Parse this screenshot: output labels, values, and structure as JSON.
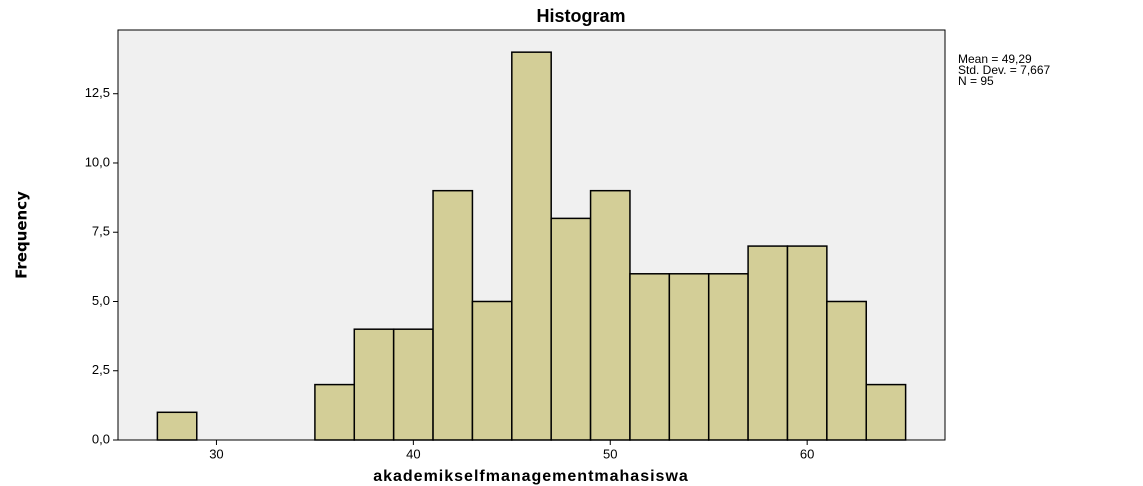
{
  "chart_data": {
    "type": "histogram",
    "title": "Histogram",
    "xlabel": "akademikselfmanagementmahasiswa",
    "ylabel": "Frequency",
    "bins": [
      27,
      29,
      31,
      33,
      35,
      37,
      39,
      41,
      43,
      45,
      47,
      49,
      51,
      53,
      55,
      57,
      59,
      61,
      63,
      65
    ],
    "counts": [
      1,
      0,
      0,
      0,
      2,
      4,
      4,
      9,
      5,
      14,
      8,
      9,
      6,
      6,
      6,
      7,
      7,
      5,
      2
    ],
    "color": "#d3ce97",
    "xlim": [
      25,
      67
    ],
    "xticks": [
      30,
      40,
      50,
      60
    ],
    "ylim": [
      0,
      14.8
    ],
    "yticks": [
      {
        "value": 0,
        "label": "0,0"
      },
      {
        "value": 2.5,
        "label": "2,5"
      },
      {
        "value": 5,
        "label": "5,0"
      },
      {
        "value": 7.5,
        "label": "7,5"
      },
      {
        "value": 10,
        "label": "10,0"
      },
      {
        "value": 12.5,
        "label": "12,5"
      }
    ],
    "grid": false,
    "annotations": [
      "Mean = 49,29",
      "Std. Dev. = 7,667",
      "N = 95"
    ]
  }
}
